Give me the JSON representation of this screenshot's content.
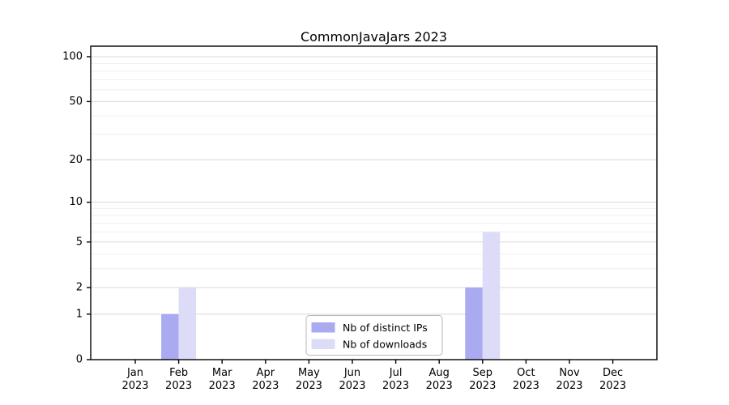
{
  "chart_data": {
    "type": "bar",
    "title": "CommonJavaJars 2023",
    "x": {
      "months": [
        "Jan",
        "Feb",
        "Mar",
        "Apr",
        "May",
        "Jun",
        "Jul",
        "Aug",
        "Sep",
        "Oct",
        "Nov",
        "Dec"
      ],
      "year": "2023"
    },
    "series": [
      {
        "name": "Nb of distinct IPs",
        "color": "#aaaaf0",
        "values": [
          0,
          1,
          0,
          0,
          0,
          0,
          0,
          0,
          2,
          0,
          0,
          0
        ]
      },
      {
        "name": "Nb of downloads",
        "color": "#dcdcf8",
        "values": [
          0,
          2,
          0,
          0,
          0,
          0,
          0,
          0,
          6,
          0,
          0,
          0
        ]
      }
    ],
    "y_axis": {
      "scale": "log10(1+x)",
      "min": 0,
      "max": 100,
      "tick_values": [
        0,
        1,
        2,
        5,
        10,
        20,
        50,
        100
      ],
      "minor_gridlines": [
        3,
        4,
        6,
        7,
        8,
        9,
        30,
        40,
        60,
        70,
        80,
        90
      ]
    },
    "legend": {
      "position": "inside-bottom-center",
      "entries": [
        "Nb of distinct IPs",
        "Nb of downloads"
      ]
    },
    "grid": true,
    "colors": {
      "background": "#ffffff",
      "axis": "#000000",
      "major_grid": "#d8d8d8",
      "minor_grid": "#efefef",
      "legend_border": "#b8b8b8",
      "legend_fill": "#ffffff"
    }
  }
}
